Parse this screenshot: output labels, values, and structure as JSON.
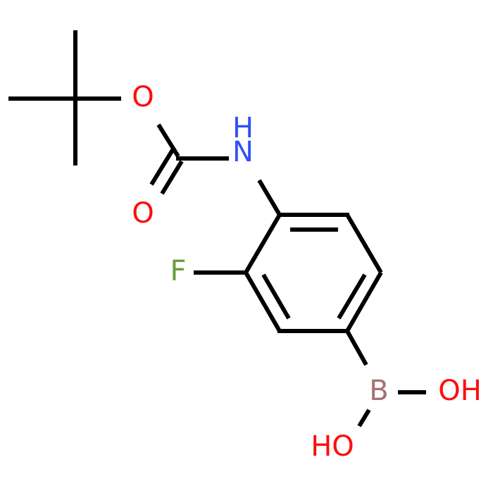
{
  "atoms": [
    {
      "label": "O",
      "color": "#ff0d0d"
    },
    {
      "label": "N",
      "color": "#3050f8"
    },
    {
      "label": "H",
      "color": "#3050f8"
    },
    {
      "label": "O",
      "color": "#ff0d0d"
    },
    {
      "label": "F",
      "color": "#6a9e3a"
    },
    {
      "label": "B",
      "color": "#a67273"
    },
    {
      "label": "OH",
      "color": "#ff0d0d"
    },
    {
      "label": "HO",
      "color": "#ff0d0d"
    }
  ]
}
